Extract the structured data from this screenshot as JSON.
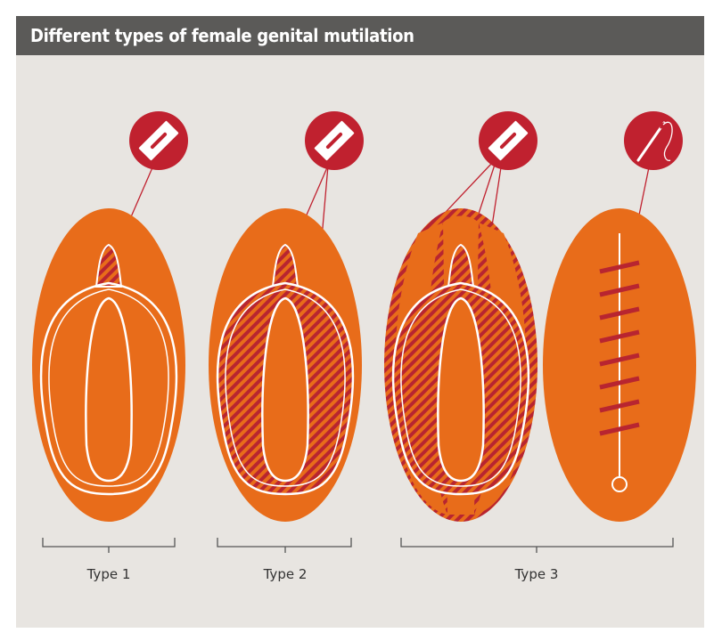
{
  "header": {
    "title": "Different types of female genital mutilation"
  },
  "labels": [
    "Type 1",
    "Type 2",
    "Type 3"
  ]
}
